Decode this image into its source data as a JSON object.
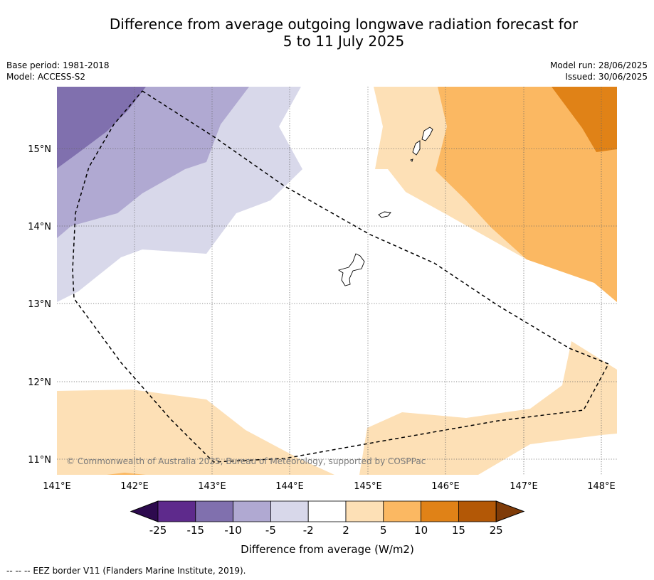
{
  "title_line1": "Difference from average outgoing longwave radiation forecast for",
  "title_line2": "5 to 11 July 2025",
  "base_period": "Base period: 1981-2018",
  "model": "Model: ACCESS-S2",
  "model_run": "Model run: 28/06/2025",
  "issued": "Issued: 30/06/2025",
  "copyright": "© Commonwealth of Australia 2025, Bureau of Meteorology, supported by COSPPac",
  "lon_labels": [
    "141°E",
    "142°E",
    "143°E",
    "144°E",
    "145°E",
    "146°E",
    "147°E",
    "148°E"
  ],
  "lat_labels": [
    "15°N",
    "14°N",
    "13°N",
    "12°N",
    "11°N"
  ],
  "colorbar": {
    "ticks": [
      "-25",
      "-15",
      "-10",
      "-5",
      "-2",
      "2",
      "5",
      "10",
      "15",
      "25"
    ],
    "colors": [
      "#2d0a4e",
      "#5e2a8c",
      "#8070ae",
      "#b0a9d2",
      "#d8d8ea",
      "#ffffff",
      "#fde0b6",
      "#fbb862",
      "#e08217",
      "#b35806",
      "#7f3b08"
    ],
    "label": "Difference from average (W/m2)"
  },
  "footer": "--  --  -- EEZ border V11 (Flanders Marine Institute, 2019)."
}
